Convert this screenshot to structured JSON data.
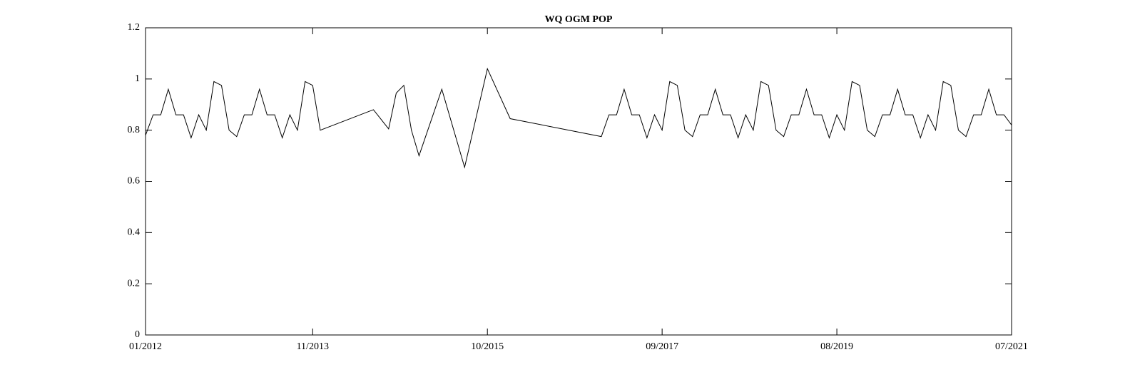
{
  "chart_data": {
    "type": "line",
    "title": "WQ OGM POP",
    "color": "#000000",
    "x": [
      "2012-01",
      "2012-01",
      "2012-02",
      "2012-03",
      "2012-04",
      "2012-05",
      "2012-06",
      "2012-07",
      "2012-08",
      "2012-09",
      "2012-10",
      "2012-11",
      "2012-12",
      "2013-01",
      "2013-02",
      "2013-03",
      "2013-04",
      "2013-05",
      "2013-06",
      "2013-07",
      "2013-08",
      "2013-09",
      "2013-10",
      "2013-11",
      "2013-12",
      "2014-07",
      "2014-09",
      "2014-10",
      "2014-11",
      "2014-12",
      "2015-01",
      "2015-04",
      "2015-07",
      "2015-10",
      "2016-01",
      "2017-01",
      "2017-02",
      "2017-03",
      "2017-04",
      "2017-05",
      "2017-06",
      "2017-07",
      "2017-08",
      "2017-09",
      "2017-10",
      "2017-11",
      "2017-12",
      "2018-01",
      "2018-02",
      "2018-03",
      "2018-04",
      "2018-05",
      "2018-06",
      "2018-07",
      "2018-08",
      "2018-09",
      "2018-10",
      "2018-11",
      "2018-12",
      "2019-01",
      "2019-02",
      "2019-03",
      "2019-04",
      "2019-05",
      "2019-06",
      "2019-07",
      "2019-08",
      "2019-09",
      "2019-10",
      "2019-11",
      "2019-12",
      "2020-01",
      "2020-02",
      "2020-03",
      "2020-04",
      "2020-05",
      "2020-06",
      "2020-07",
      "2020-08",
      "2020-09",
      "2020-10",
      "2020-11",
      "2020-12",
      "2021-01",
      "2021-02",
      "2021-03",
      "2021-04",
      "2021-05",
      "2021-06",
      "2021-07"
    ],
    "values": [
      0,
      0.78,
      0.86,
      0.86,
      0.96,
      0.86,
      0.86,
      0.77,
      0.86,
      0.8,
      0.99,
      0.975,
      0.8,
      0.775,
      0.86,
      0.86,
      0.96,
      0.86,
      0.86,
      0.77,
      0.86,
      0.8,
      0.99,
      0.975,
      0.8,
      0.88,
      0.805,
      0.945,
      0.975,
      0.8,
      0.7,
      0.96,
      0.655,
      1.04,
      0.845,
      0.775,
      0.86,
      0.86,
      0.96,
      0.86,
      0.86,
      0.77,
      0.86,
      0.8,
      0.99,
      0.975,
      0.8,
      0.775,
      0.86,
      0.86,
      0.96,
      0.86,
      0.86,
      0.77,
      0.86,
      0.8,
      0.99,
      0.975,
      0.8,
      0.775,
      0.86,
      0.86,
      0.96,
      0.86,
      0.86,
      0.77,
      0.86,
      0.8,
      0.99,
      0.975,
      0.8,
      0.775,
      0.86,
      0.86,
      0.96,
      0.86,
      0.86,
      0.77,
      0.86,
      0.8,
      0.99,
      0.975,
      0.8,
      0.775,
      0.86,
      0.86,
      0.96,
      0.86,
      0.86,
      0.82
    ],
    "xlim": [
      "2012-01",
      "2021-07"
    ],
    "xticks": [
      {
        "value": "2012-01",
        "label": "01/2012"
      },
      {
        "value": "2013-11",
        "label": "11/2013"
      },
      {
        "value": "2015-10",
        "label": "10/2015"
      },
      {
        "value": "2017-09",
        "label": "09/2017"
      },
      {
        "value": "2019-08",
        "label": "08/2019"
      },
      {
        "value": "2021-07",
        "label": "07/2021"
      }
    ],
    "ylim": [
      0,
      1.2
    ],
    "yticks": [
      0,
      0.2,
      0.4,
      0.6,
      0.8,
      1,
      1.2
    ]
  }
}
